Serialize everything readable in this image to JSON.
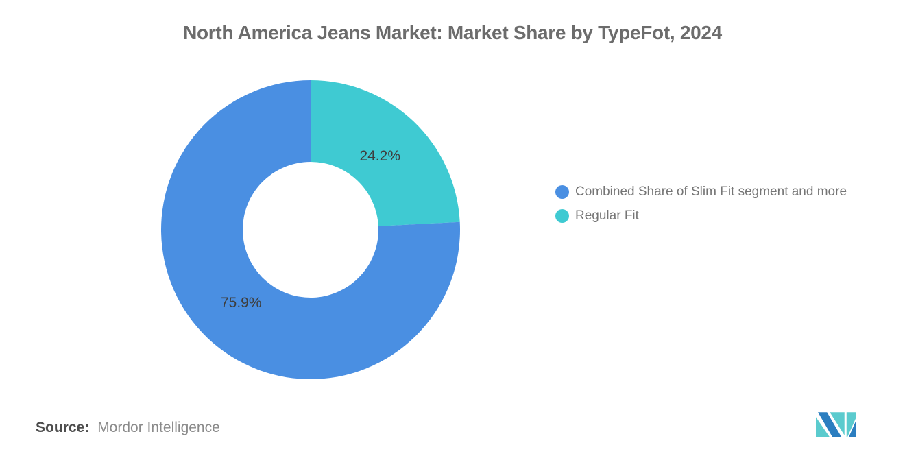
{
  "page": {
    "background": "#ffffff"
  },
  "title": "North America Jeans Market: Market Share by TypeFot, 2024",
  "chart_data": {
    "type": "pie",
    "subtype": "donut",
    "title": "North America Jeans Market: Market Share by TypeFot, 2024",
    "slices": [
      {
        "label": "Combined Share of Slim Fit segment and more",
        "value": 75.9,
        "display": "75.9%",
        "color": "#4a8fe2"
      },
      {
        "label": "Regular Fit",
        "value": 24.2,
        "display": "24.2%",
        "color": "#3fcad2"
      }
    ],
    "layout": {
      "inner_radius_ratio": 0.455,
      "first_slice_at_top_clockwise": "Regular Fit",
      "labels": "inside",
      "legend_position": "right",
      "label_color": "#3e3e3e"
    }
  },
  "source": {
    "label": "Source:",
    "text": "Mordor Intelligence"
  },
  "logo": {
    "name": "mordor-intelligence",
    "blue": "#2b7ec0",
    "teal": "#5bcbce"
  }
}
